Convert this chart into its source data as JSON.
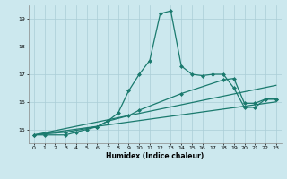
{
  "title": "",
  "xlabel": "Humidex (Indice chaleur)",
  "bg_color": "#cce8ee",
  "grid_color": "#aacdd6",
  "line_color": "#1a7a6e",
  "xlim": [
    -0.5,
    23.5
  ],
  "ylim": [
    14.5,
    19.5
  ],
  "yticks": [
    15,
    16,
    17,
    18,
    19
  ],
  "xticks": [
    0,
    1,
    2,
    3,
    4,
    5,
    6,
    7,
    8,
    9,
    10,
    11,
    12,
    13,
    14,
    15,
    16,
    17,
    18,
    19,
    20,
    21,
    22,
    23
  ],
  "series": [
    {
      "x": [
        0,
        1,
        3,
        4,
        5,
        6,
        7,
        8,
        9,
        10,
        11,
        12,
        13,
        14,
        15,
        16,
        17,
        18,
        19,
        20,
        21,
        22,
        23
      ],
      "y": [
        14.8,
        14.8,
        14.8,
        14.9,
        15.0,
        15.1,
        15.3,
        15.6,
        16.4,
        17.0,
        17.5,
        19.2,
        19.3,
        17.3,
        17.0,
        16.95,
        17.0,
        17.0,
        16.5,
        15.8,
        15.8,
        16.1,
        16.1
      ],
      "marker": "D",
      "markersize": 2.0,
      "linewidth": 0.9
    },
    {
      "x": [
        0,
        3,
        6,
        7,
        9,
        10,
        14,
        18,
        19,
        20,
        21,
        22,
        23
      ],
      "y": [
        14.8,
        14.9,
        15.1,
        15.3,
        15.5,
        15.7,
        16.3,
        16.8,
        16.85,
        15.95,
        15.95,
        16.1,
        16.1
      ],
      "marker": "D",
      "markersize": 2.0,
      "linewidth": 0.9
    },
    {
      "x": [
        0,
        23
      ],
      "y": [
        14.8,
        16.6
      ],
      "marker": null,
      "markersize": 0,
      "linewidth": 0.9
    },
    {
      "x": [
        0,
        23
      ],
      "y": [
        14.8,
        16.0
      ],
      "marker": null,
      "markersize": 0,
      "linewidth": 0.9
    }
  ]
}
